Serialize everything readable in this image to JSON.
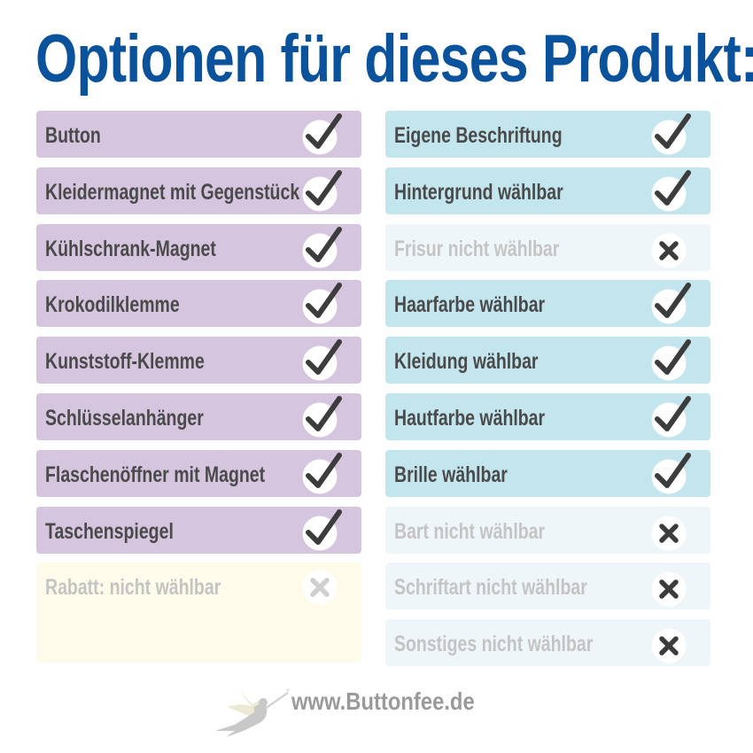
{
  "title": "Optionen für dieses Produkt:",
  "colors": {
    "title": "#0b529c",
    "text": "#4a4a4a",
    "text_disabled": "#c4c4c4",
    "left_enabled_bg": "#d5c5df",
    "right_enabled_bg": "#c3e5ed",
    "right_disabled_bg": "#eef6fa",
    "left_disabled_bg": "#fffbea",
    "icon": "#3c3c3c",
    "icon_disabled": "#cfcfcf"
  },
  "left_options": [
    {
      "label": "Button",
      "available": true,
      "icon": "check-icon"
    },
    {
      "label": "Kleidermagnet mit Gegenstück",
      "available": true,
      "icon": "check-icon"
    },
    {
      "label": "Kühlschrank-Magnet",
      "available": true,
      "icon": "check-icon"
    },
    {
      "label": "Krokodilklemme",
      "available": true,
      "icon": "check-icon"
    },
    {
      "label": "Kunststoff-Klemme",
      "available": true,
      "icon": "check-icon"
    },
    {
      "label": "Schlüsselanhänger",
      "available": true,
      "icon": "check-icon"
    },
    {
      "label": "Flaschenöffner mit Magnet",
      "available": true,
      "icon": "check-icon"
    },
    {
      "label": "Taschenspiegel",
      "available": true,
      "icon": "check-icon"
    },
    {
      "label": "Rabatt: nicht wählbar",
      "available": false,
      "icon": "cross-icon",
      "faded": true
    }
  ],
  "right_options": [
    {
      "label": "Eigene Beschriftung",
      "available": true,
      "icon": "check-icon"
    },
    {
      "label": "Hintergrund wählbar",
      "available": true,
      "icon": "check-icon"
    },
    {
      "label": "Frisur nicht wählbar",
      "available": false,
      "icon": "cross-icon"
    },
    {
      "label": "Haarfarbe wählbar",
      "available": true,
      "icon": "check-icon"
    },
    {
      "label": "Kleidung wählbar",
      "available": true,
      "icon": "check-icon"
    },
    {
      "label": "Hautfarbe wählbar",
      "available": true,
      "icon": "check-icon"
    },
    {
      "label": "Brille wählbar",
      "available": true,
      "icon": "check-icon"
    },
    {
      "label": "Bart nicht wählbar",
      "available": false,
      "icon": "cross-icon"
    },
    {
      "label": "Schriftart nicht wählbar",
      "available": false,
      "icon": "cross-icon"
    },
    {
      "label": "Sonstiges nicht wählbar",
      "available": false,
      "icon": "cross-icon"
    }
  ],
  "footer": {
    "url": "www.Buttonfee.de",
    "logo": "fairy-logo"
  }
}
